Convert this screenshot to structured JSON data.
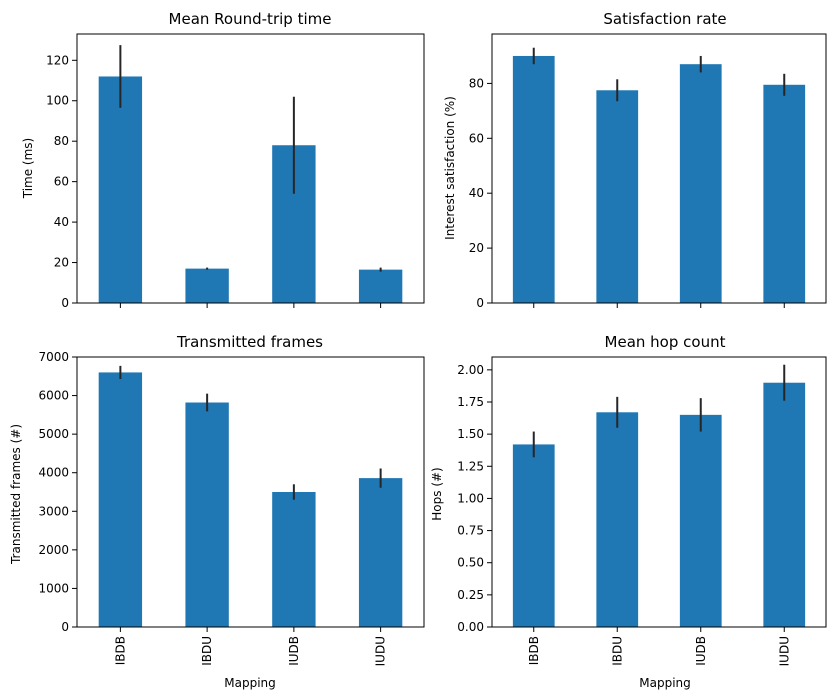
{
  "figure": {
    "bar_color": "#1f77b4",
    "error_bar_color": "#262626",
    "axis_color": "#000000"
  },
  "chart_data": [
    {
      "type": "bar",
      "title": "Mean Round-trip time",
      "xlabel": "",
      "ylabel": "Time (ms)",
      "categories": [
        "IBDB",
        "IBDU",
        "IUDB",
        "IUDU"
      ],
      "values": [
        112,
        17,
        78,
        16.5
      ],
      "errors": [
        15.5,
        0.5,
        24,
        1
      ],
      "ylim": [
        0,
        133
      ],
      "yticks": [
        "0",
        "20",
        "40",
        "60",
        "80",
        "100",
        "120"
      ],
      "show_category_labels": false,
      "grid": false
    },
    {
      "type": "bar",
      "title": "Satisfaction rate",
      "xlabel": "",
      "ylabel": "Interest satisfaction (%)",
      "categories": [
        "IBDB",
        "IBDU",
        "IUDB",
        "IUDU"
      ],
      "values": [
        90,
        77.5,
        87,
        79.5
      ],
      "errors": [
        3,
        4,
        3,
        4
      ],
      "ylim": [
        0,
        98
      ],
      "yticks": [
        "0",
        "20",
        "40",
        "60",
        "80"
      ],
      "show_category_labels": false,
      "grid": false
    },
    {
      "type": "bar",
      "title": "Transmitted frames",
      "xlabel": "Mapping",
      "ylabel": "Transmitted frames (#)",
      "categories": [
        "IBDB",
        "IBDU",
        "IUDB",
        "IUDU"
      ],
      "values": [
        6600,
        5820,
        3500,
        3860
      ],
      "errors": [
        170,
        230,
        200,
        250
      ],
      "ylim": [
        0,
        7000
      ],
      "yticks": [
        "0",
        "1000",
        "2000",
        "3000",
        "4000",
        "5000",
        "6000",
        "7000"
      ],
      "show_category_labels": true,
      "grid": false
    },
    {
      "type": "bar",
      "title": "Mean hop count",
      "xlabel": "Mapping",
      "ylabel": "Hops (#)",
      "categories": [
        "IBDB",
        "IBDU",
        "IUDB",
        "IUDU"
      ],
      "values": [
        1.42,
        1.67,
        1.65,
        1.9
      ],
      "errors": [
        0.1,
        0.12,
        0.13,
        0.14
      ],
      "ylim": [
        0,
        2.1
      ],
      "yticks": [
        "0.00",
        "0.25",
        "0.50",
        "0.75",
        "1.00",
        "1.25",
        "1.50",
        "1.75",
        "2.00"
      ],
      "show_category_labels": true,
      "grid": false
    }
  ]
}
